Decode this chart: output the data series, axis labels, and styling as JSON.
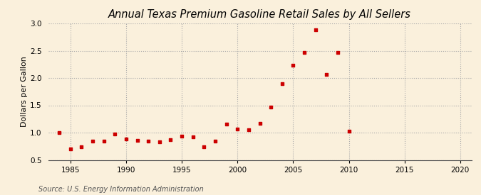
{
  "title": "Annual Texas Premium Gasoline Retail Sales by All Sellers",
  "ylabel": "Dollars per Gallon",
  "source": "Source: U.S. Energy Information Administration",
  "background_color": "#faf0dc",
  "marker_color": "#cc0000",
  "years": [
    1984,
    1985,
    1986,
    1987,
    1988,
    1989,
    1990,
    1991,
    1992,
    1993,
    1994,
    1995,
    1996,
    1997,
    1998,
    1999,
    2000,
    2001,
    2002,
    2003,
    2004,
    2005,
    2006,
    2007,
    2008,
    2009,
    2010
  ],
  "values": [
    1.0,
    0.7,
    0.74,
    0.85,
    0.84,
    0.97,
    0.88,
    0.86,
    0.84,
    0.83,
    0.87,
    0.93,
    0.92,
    0.74,
    0.85,
    1.15,
    1.07,
    1.05,
    1.17,
    1.47,
    1.9,
    2.24,
    2.47,
    2.88,
    2.07,
    2.47,
    1.03
  ],
  "xlim": [
    1983,
    2021
  ],
  "ylim": [
    0.5,
    3.0
  ],
  "xticks": [
    1985,
    1990,
    1995,
    2000,
    2005,
    2010,
    2015,
    2020
  ],
  "yticks": [
    0.5,
    1.0,
    1.5,
    2.0,
    2.5,
    3.0
  ],
  "grid_color": "#aaaaaa",
  "title_fontsize": 10.5,
  "label_fontsize": 8,
  "tick_fontsize": 7.5,
  "source_fontsize": 7
}
